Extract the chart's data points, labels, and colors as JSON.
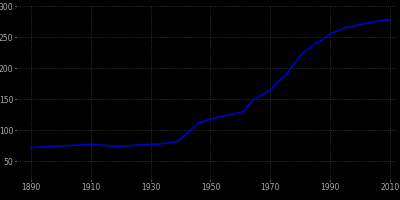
{
  "title": "",
  "years": [
    1890,
    1900,
    1905,
    1910,
    1919,
    1925,
    1933,
    1939,
    1946,
    1950,
    1956,
    1961,
    1964,
    1970,
    1974,
    1975,
    1980,
    1985,
    1987,
    1990,
    1995,
    2000,
    2005,
    2008,
    2010
  ],
  "population": [
    72000,
    75000,
    76000,
    77500,
    74000,
    76000,
    78000,
    82000,
    112000,
    118000,
    125000,
    130000,
    148000,
    165000,
    185000,
    188000,
    220000,
    240000,
    244000,
    255000,
    265000,
    270000,
    275000,
    277000,
    278000
  ],
  "line_color": "#0000cc",
  "line_width": 1.2,
  "bg_color": "#000000",
  "plot_bg_color": "#000000",
  "grid_color": "#555555",
  "text_color": "#aaaaaa",
  "tick_color": "#aaaaaa",
  "xlim": [
    1885,
    2012
  ],
  "ylim": [
    20000,
    300000
  ],
  "xticks": [
    1890,
    1910,
    1930,
    1950,
    1970,
    1990,
    2010
  ],
  "yticks": [
    50000,
    100000,
    150000,
    200000,
    250000,
    300000
  ],
  "tick_fontsize": 5.5
}
